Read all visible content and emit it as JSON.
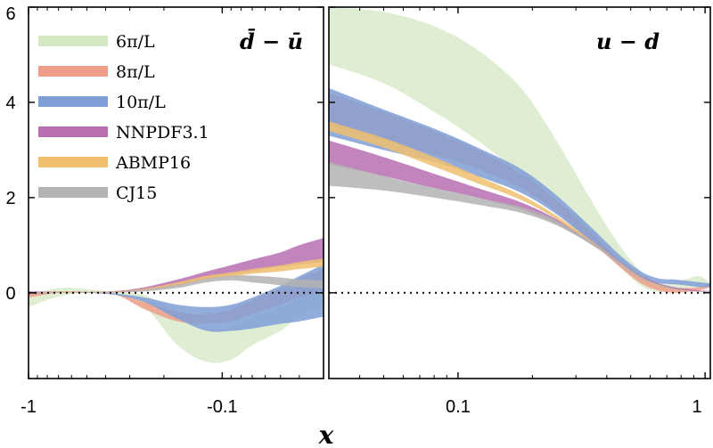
{
  "chart_data": {
    "type": "area",
    "xlabel": "x",
    "y_ticks": [
      "0",
      "2",
      "4",
      "6"
    ],
    "ylim": [
      -1.8,
      6
    ],
    "legend": {
      "placement": "top-left",
      "entries": [
        {
          "label": "6π/L",
          "color": "#d4e8c4"
        },
        {
          "label": "8π/L",
          "color": "#ee9d88"
        },
        {
          "label": "10π/L",
          "color": "#7f9fd6"
        },
        {
          "label": "NNPDF3.1",
          "color": "#b76fb1"
        },
        {
          "label": "ABMP16",
          "color": "#f0c06e"
        },
        {
          "label": "CJ15",
          "color": "#b3b3b3"
        }
      ]
    },
    "panels": [
      {
        "title": "d̄ − ū",
        "x_ticks": [
          "-1",
          "-0.1"
        ],
        "x_tick_values": [
          -1,
          -0.1
        ],
        "xlim": [
          -1,
          -0.03
        ],
        "xscale": "symlog-negative",
        "zero_line": true,
        "series": [
          {
            "name": "6π/L",
            "color": "#d4e8c4",
            "x": [
              -1,
              -0.7,
              -0.5,
              -0.35,
              -0.25,
              -0.17,
              -0.12,
              -0.09,
              -0.07,
              -0.05,
              -0.04,
              -0.03
            ],
            "lower": [
              -0.3,
              -0.08,
              0.0,
              -0.02,
              -0.3,
              -1.1,
              -1.45,
              -1.4,
              -1.1,
              -0.8,
              -0.5,
              -0.3
            ],
            "upper": [
              -0.05,
              0.1,
              0.08,
              0.0,
              -0.05,
              -0.4,
              -0.75,
              -0.7,
              -0.5,
              -0.3,
              -0.1,
              0.2
            ]
          },
          {
            "name": "8π/L",
            "color": "#ee9d88",
            "x": [
              -1,
              -0.7,
              -0.5,
              -0.35,
              -0.25,
              -0.17,
              -0.12,
              -0.09,
              -0.07,
              -0.05,
              -0.04,
              -0.03
            ],
            "lower": [
              -0.1,
              0.0,
              0.0,
              -0.05,
              -0.35,
              -0.6,
              -0.65,
              -0.6,
              -0.45,
              -0.25,
              -0.1,
              0.05
            ],
            "upper": [
              0.0,
              0.03,
              0.02,
              -0.02,
              -0.2,
              -0.4,
              -0.45,
              -0.35,
              -0.15,
              0.1,
              0.3,
              0.5
            ]
          },
          {
            "name": "10π/L",
            "color": "#7f9fd6",
            "x": [
              -1,
              -0.7,
              -0.5,
              -0.35,
              -0.25,
              -0.17,
              -0.12,
              -0.09,
              -0.07,
              -0.05,
              -0.04,
              -0.03
            ],
            "lower": [
              -0.02,
              0.0,
              0.0,
              -0.05,
              -0.2,
              -0.55,
              -0.8,
              -0.8,
              -0.75,
              -0.65,
              -0.6,
              -0.5
            ],
            "upper": [
              0.02,
              0.02,
              0.02,
              -0.02,
              -0.1,
              -0.25,
              -0.3,
              -0.25,
              -0.1,
              0.15,
              0.35,
              0.6
            ]
          },
          {
            "name": "NNPDF3.1",
            "color": "#b76fb1",
            "x": [
              -1,
              -0.7,
              -0.5,
              -0.35,
              -0.25,
              -0.17,
              -0.12,
              -0.09,
              -0.07,
              -0.05,
              -0.04,
              -0.03
            ],
            "lower": [
              -0.03,
              0.0,
              0.0,
              0.01,
              0.05,
              0.15,
              0.3,
              0.38,
              0.45,
              0.55,
              0.6,
              0.65
            ],
            "upper": [
              0.03,
              0.02,
              0.02,
              0.04,
              0.12,
              0.28,
              0.45,
              0.58,
              0.7,
              0.85,
              1.0,
              1.15
            ]
          },
          {
            "name": "ABMP16",
            "color": "#f0c06e",
            "x": [
              -1,
              -0.7,
              -0.5,
              -0.35,
              -0.25,
              -0.17,
              -0.12,
              -0.09,
              -0.07,
              -0.05,
              -0.04,
              -0.03
            ],
            "lower": [
              -0.02,
              0.0,
              0.0,
              0.01,
              0.05,
              0.15,
              0.28,
              0.34,
              0.4,
              0.45,
              0.5,
              0.55
            ],
            "upper": [
              0.01,
              0.02,
              0.02,
              0.03,
              0.09,
              0.22,
              0.36,
              0.43,
              0.5,
              0.58,
              0.65,
              0.72
            ]
          },
          {
            "name": "CJ15",
            "color": "#b3b3b3",
            "x": [
              -1,
              -0.7,
              -0.5,
              -0.35,
              -0.25,
              -0.17,
              -0.12,
              -0.09,
              -0.07,
              -0.05,
              -0.04,
              -0.03
            ],
            "lower": [
              -0.02,
              0.0,
              0.0,
              0.0,
              0.03,
              0.1,
              0.22,
              0.26,
              0.22,
              0.16,
              0.12,
              0.1
            ],
            "upper": [
              0.01,
              0.01,
              0.01,
              0.02,
              0.07,
              0.17,
              0.3,
              0.36,
              0.36,
              0.32,
              0.28,
              0.26
            ]
          }
        ]
      },
      {
        "title": "u − d",
        "x_ticks": [
          "0.1",
          "1"
        ],
        "x_tick_values": [
          0.1,
          1
        ],
        "xlim": [
          0.03,
          1.05
        ],
        "xscale": "log",
        "zero_line": true,
        "series": [
          {
            "name": "6π/L",
            "color": "#d4e8c4",
            "x": [
              0.03,
              0.05,
              0.08,
              0.12,
              0.18,
              0.25,
              0.35,
              0.45,
              0.55,
              0.65,
              0.75,
              0.85,
              0.95,
              1.05
            ],
            "lower": [
              4.8,
              4.4,
              3.8,
              3.2,
              2.5,
              1.9,
              1.1,
              0.55,
              0.15,
              0.02,
              0.05,
              0.1,
              0.1,
              0.15
            ],
            "upper": [
              6.0,
              5.9,
              5.6,
              5.1,
              4.3,
              3.2,
              1.9,
              1.0,
              0.45,
              0.2,
              0.2,
              0.3,
              0.35,
              0.2
            ]
          },
          {
            "name": "8π/L",
            "color": "#ee9d88",
            "x": [
              0.03,
              0.05,
              0.08,
              0.12,
              0.18,
              0.25,
              0.35,
              0.45,
              0.55,
              0.65,
              0.75,
              0.85,
              0.95,
              1.05
            ],
            "lower": [
              3.5,
              3.2,
              2.9,
              2.6,
              2.2,
              1.7,
              1.05,
              0.55,
              0.2,
              0.05,
              0.0,
              0.02,
              0.05,
              0.12
            ],
            "upper": [
              4.2,
              3.8,
              3.4,
              3.0,
              2.5,
              1.95,
              1.25,
              0.7,
              0.35,
              0.18,
              0.1,
              0.1,
              0.12,
              0.18
            ]
          },
          {
            "name": "10π/L",
            "color": "#7f9fd6",
            "x": [
              0.03,
              0.05,
              0.08,
              0.12,
              0.18,
              0.25,
              0.35,
              0.45,
              0.55,
              0.65,
              0.75,
              0.85,
              0.95,
              1.05
            ],
            "lower": [
              3.3,
              3.0,
              2.75,
              2.45,
              2.1,
              1.65,
              1.05,
              0.6,
              0.3,
              0.2,
              0.18,
              0.15,
              0.12,
              0.12
            ],
            "upper": [
              4.3,
              3.85,
              3.45,
              3.05,
              2.6,
              2.05,
              1.35,
              0.8,
              0.45,
              0.3,
              0.28,
              0.25,
              0.22,
              0.2
            ]
          },
          {
            "name": "NNPDF3.1",
            "color": "#b76fb1",
            "x": [
              0.03,
              0.05,
              0.08,
              0.12,
              0.18,
              0.25,
              0.35,
              0.45,
              0.55,
              0.65,
              0.75,
              0.85,
              0.95,
              1.05
            ],
            "lower": [
              2.7,
              2.45,
              2.2,
              2.0,
              1.75,
              1.45,
              1.0,
              0.6,
              0.3,
              0.15,
              0.08,
              0.05,
              0.03,
              0.02
            ],
            "upper": [
              3.2,
              2.85,
              2.5,
              2.2,
              1.9,
              1.55,
              1.08,
              0.66,
              0.36,
              0.2,
              0.12,
              0.08,
              0.05,
              0.04
            ]
          },
          {
            "name": "ABMP16",
            "color": "#f0c06e",
            "x": [
              0.03,
              0.05,
              0.08,
              0.12,
              0.18,
              0.25,
              0.35,
              0.45,
              0.55,
              0.65,
              0.75,
              0.85,
              0.95,
              1.05
            ],
            "lower": [
              3.4,
              3.05,
              2.65,
              2.3,
              1.95,
              1.55,
              1.02,
              0.6,
              0.3,
              0.14,
              0.07,
              0.04,
              0.02,
              0.01
            ],
            "upper": [
              3.6,
              3.25,
              2.85,
              2.45,
              2.05,
              1.62,
              1.08,
              0.65,
              0.34,
              0.17,
              0.09,
              0.05,
              0.03,
              0.02
            ]
          },
          {
            "name": "CJ15",
            "color": "#b3b3b3",
            "x": [
              0.03,
              0.05,
              0.08,
              0.12,
              0.18,
              0.25,
              0.35,
              0.45,
              0.55,
              0.65,
              0.75,
              0.85,
              0.95,
              1.05
            ],
            "lower": [
              2.25,
              2.15,
              2.0,
              1.85,
              1.68,
              1.42,
              1.0,
              0.6,
              0.3,
              0.15,
              0.07,
              0.04,
              0.02,
              0.01
            ],
            "upper": [
              2.75,
              2.45,
              2.2,
              2.0,
              1.8,
              1.52,
              1.06,
              0.65,
              0.34,
              0.18,
              0.09,
              0.05,
              0.03,
              0.02
            ]
          }
        ]
      }
    ]
  }
}
